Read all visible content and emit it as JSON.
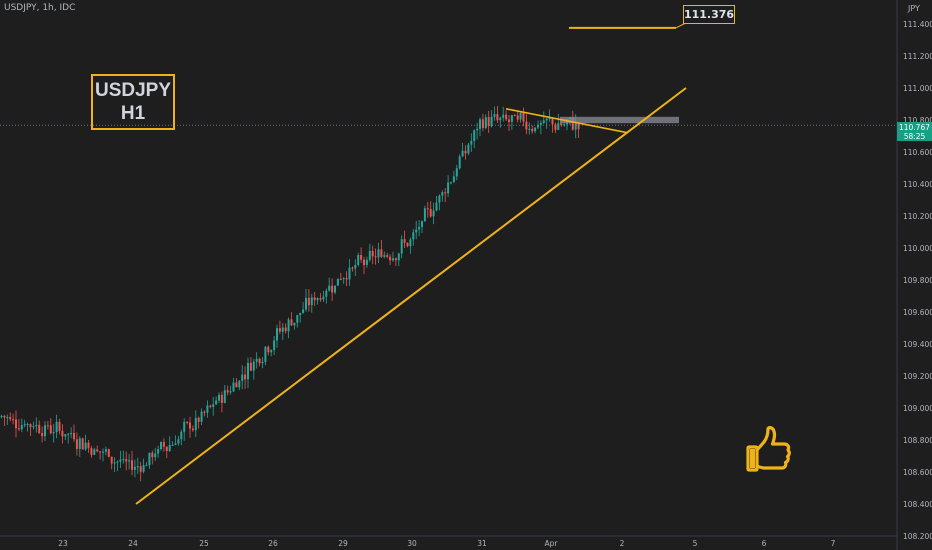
{
  "header": {
    "symbol": "USDJPY, 1h, IDC",
    "currency": "JPY"
  },
  "annotations": {
    "title_line1": "USDJPY",
    "title_line2": "H1",
    "target_label": "111.376",
    "current_price": "110.767",
    "countdown": "58:25",
    "thumb_icon": "thumbs-up-icon",
    "accent_color": "#f0b21b"
  },
  "chart_data": {
    "type": "candlestick",
    "title": "USDJPY, 1h, IDC",
    "ylim": [
      108.2,
      111.55
    ],
    "y_ticks": [
      "111.400",
      "111.200",
      "111.000",
      "110.800",
      "110.600",
      "110.400",
      "110.200",
      "110.000",
      "109.800",
      "109.600",
      "109.400",
      "109.200",
      "109.000",
      "108.800",
      "108.600",
      "108.400",
      "108.200"
    ],
    "x_ticks": [
      "23",
      "24",
      "25",
      "26",
      "29",
      "30",
      "31",
      "Apr",
      "2",
      "5",
      "6",
      "7"
    ],
    "grid": false,
    "colors": {
      "up": "#26a69a",
      "down": "#ef5350",
      "trendline": "#f0b21b"
    },
    "trend_anchors": [
      {
        "label": "23",
        "value": 108.85
      },
      {
        "label": "24",
        "value": 108.62
      },
      {
        "label": "25",
        "value": 108.95
      },
      {
        "label": "26",
        "value": 109.45
      },
      {
        "label": "29",
        "value": 109.85
      },
      {
        "label": "30",
        "value": 110.05
      },
      {
        "label": "31",
        "value": 110.8
      },
      {
        "label": "Apr",
        "value": 110.77
      }
    ],
    "ascending_trendline": {
      "from": 108.4,
      "to": 111.0
    },
    "descending_trendline": {
      "from": 110.87,
      "to": 110.72
    },
    "resistance_zone": [
      110.78,
      110.82
    ],
    "target_level": 111.376,
    "current_price": 110.767
  }
}
